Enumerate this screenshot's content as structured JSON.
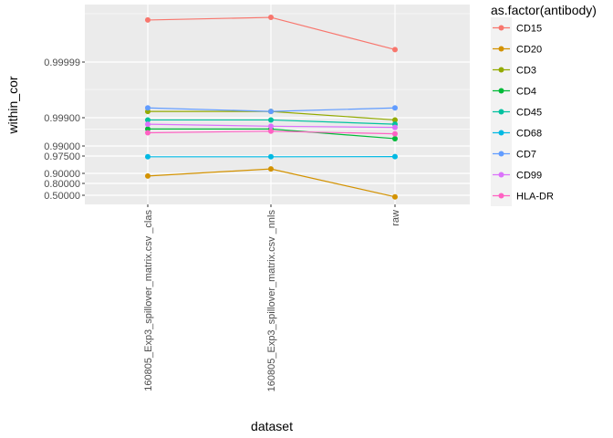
{
  "chart_data": {
    "type": "line",
    "xlabel": "dataset",
    "ylabel": "within_cor",
    "legend_title": "as.factor(antibody)",
    "legend_position": "right",
    "grid": true,
    "y_scale": "transformed (probability-like), labels shown as printed",
    "categories": [
      "160805_Exp3_spillover_matrix.csv _clas",
      "160805_Exp3_spillover_matrix.csv _nnls",
      "raw"
    ],
    "y_ticks": [
      "0.99999",
      "0.99900",
      "0.99000",
      "0.97500",
      "0.90000",
      "0.80000",
      "0.50000"
    ],
    "series": [
      {
        "name": "CD15",
        "color": "#F8766D",
        "values": [
          0.9999998,
          0.99999985,
          0.9999965
        ]
      },
      {
        "name": "CD20",
        "color": "#D39200",
        "values": [
          0.88,
          0.93,
          0.48
        ]
      },
      {
        "name": "CD3",
        "color": "#93AA00",
        "values": [
          0.9994,
          0.9994,
          0.9988
        ]
      },
      {
        "name": "CD4",
        "color": "#00BA38",
        "values": [
          0.9975,
          0.9975,
          0.9945
        ]
      },
      {
        "name": "CD45",
        "color": "#00C19F",
        "values": [
          0.9988,
          0.9988,
          0.9983
        ]
      },
      {
        "name": "CD68",
        "color": "#00B9E3",
        "values": [
          0.9735,
          0.9735,
          0.9738
        ]
      },
      {
        "name": "CD7",
        "color": "#619CFF",
        "values": [
          0.99955,
          0.9994,
          0.99955
        ]
      },
      {
        "name": "CD99",
        "color": "#DB72FB",
        "values": [
          0.9983,
          0.998,
          0.9978
        ]
      },
      {
        "name": "HLA-DR",
        "color": "#FF61C3",
        "values": [
          0.9966,
          0.997,
          0.9963
        ]
      }
    ]
  }
}
